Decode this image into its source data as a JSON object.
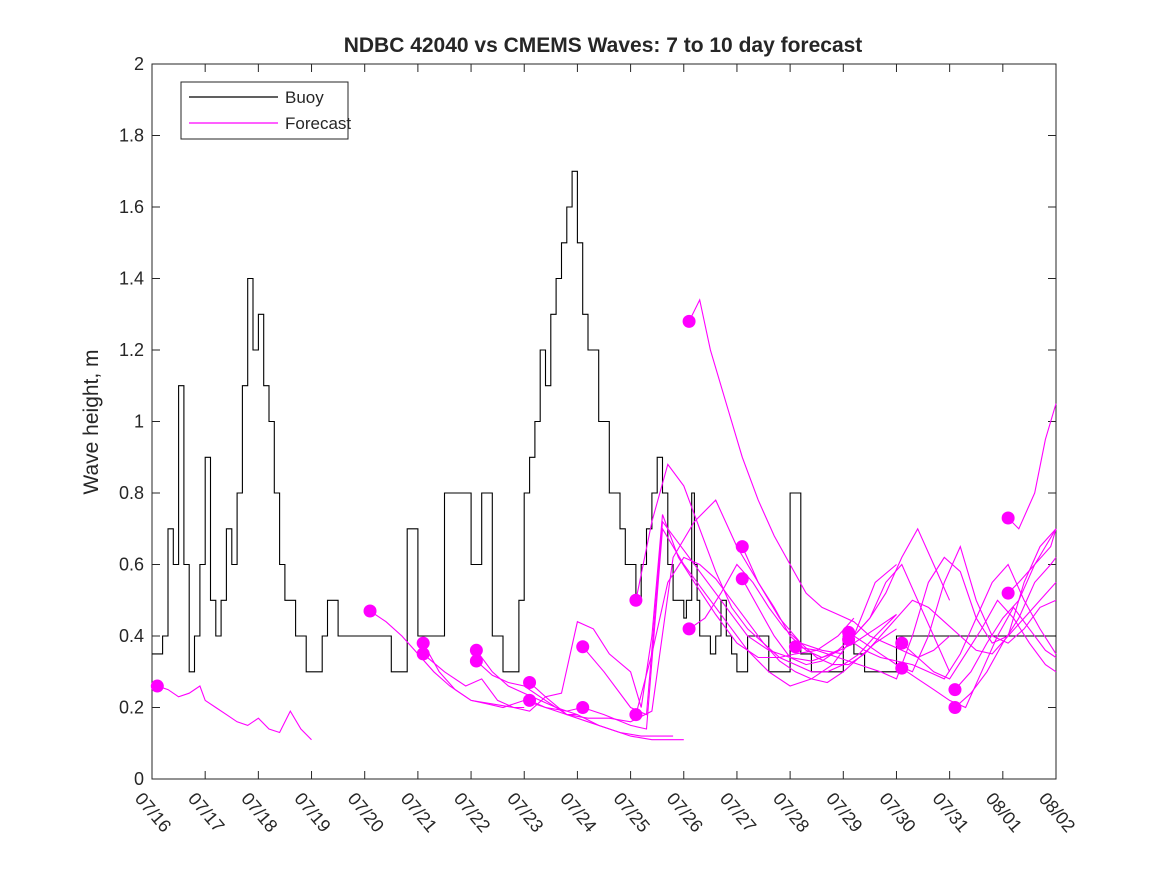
{
  "chart_data": {
    "type": "line",
    "title": "NDBC 42040 vs CMEMS Waves: 7 to 10 day forecast",
    "xlabel": "",
    "ylabel": "Wave height, m",
    "ylim": [
      0,
      2
    ],
    "xlim": [
      "07/16",
      "08/02"
    ],
    "x_ticks": [
      "07/16",
      "07/17",
      "07/18",
      "07/19",
      "07/20",
      "07/21",
      "07/22",
      "07/23",
      "07/24",
      "07/25",
      "07/26",
      "07/27",
      "07/28",
      "07/29",
      "07/30",
      "07/31",
      "08/01",
      "08/02"
    ],
    "y_ticks": [
      "0",
      "0.2",
      "0.4",
      "0.6",
      "0.8",
      "1",
      "1.2",
      "1.4",
      "1.6",
      "1.8",
      "2"
    ],
    "grid": false,
    "legend_position": "top-left",
    "legend": [
      "Buoy",
      "Forecast"
    ],
    "colors": {
      "buoy": "#000000",
      "forecast": "#ff00ff"
    },
    "buoy": {
      "name": "Buoy",
      "x_days": [
        0,
        0.2,
        0.3,
        0.4,
        0.5,
        0.6,
        0.7,
        0.8,
        0.9,
        1.0,
        1.1,
        1.2,
        1.3,
        1.4,
        1.5,
        1.6,
        1.7,
        1.8,
        1.9,
        2.0,
        2.1,
        2.2,
        2.3,
        2.4,
        2.5,
        2.6,
        2.7,
        2.8,
        2.9,
        3.0,
        3.1,
        3.2,
        3.3,
        3.4,
        3.5,
        3.6,
        3.7,
        3.8,
        3.9,
        4.0,
        4.5,
        4.8,
        5.0,
        5.3,
        5.5,
        6.0,
        6.2,
        6.4,
        6.6,
        6.8,
        6.9,
        7.0,
        7.1,
        7.2,
        7.3,
        7.4,
        7.5,
        7.6,
        7.7,
        7.8,
        7.9,
        8.0,
        8.1,
        8.2,
        8.4,
        8.6,
        8.8,
        8.9,
        9.0,
        9.1,
        9.2,
        9.3,
        9.4,
        9.5,
        9.6,
        9.7,
        9.8,
        9.9,
        10.0,
        10.05,
        10.1,
        10.15,
        10.2,
        10.25,
        10.3,
        10.4,
        10.5,
        10.6,
        10.7,
        10.8,
        10.9,
        11.0,
        11.2,
        11.4,
        11.6,
        11.8,
        12.0,
        12.2,
        12.4,
        12.6,
        12.8,
        13.0,
        13.2,
        13.4,
        13.6,
        13.8,
        14.0,
        14.2,
        14.4,
        14.6,
        14.8,
        15.0,
        15.2,
        15.4,
        15.6,
        15.8,
        16.0,
        16.2,
        16.5,
        17.0
      ],
      "values": [
        0.35,
        0.4,
        0.7,
        0.6,
        1.1,
        0.6,
        0.3,
        0.4,
        0.6,
        0.9,
        0.5,
        0.4,
        0.5,
        0.7,
        0.6,
        0.8,
        1.1,
        1.4,
        1.2,
        1.3,
        1.1,
        1.0,
        0.8,
        0.6,
        0.5,
        0.5,
        0.4,
        0.4,
        0.3,
        0.3,
        0.3,
        0.4,
        0.5,
        0.5,
        0.4,
        0.4,
        0.4,
        0.4,
        0.4,
        0.4,
        0.3,
        0.7,
        0.4,
        0.4,
        0.8,
        0.6,
        0.8,
        0.4,
        0.3,
        0.3,
        0.5,
        0.8,
        0.9,
        1.0,
        1.2,
        1.1,
        1.3,
        1.4,
        1.5,
        1.6,
        1.7,
        1.5,
        1.3,
        1.2,
        1.0,
        0.8,
        0.7,
        0.6,
        0.6,
        0.5,
        0.6,
        0.7,
        0.8,
        0.9,
        0.8,
        0.6,
        0.5,
        0.5,
        0.45,
        0.5,
        0.5,
        0.8,
        0.6,
        0.5,
        0.4,
        0.4,
        0.35,
        0.4,
        0.5,
        0.4,
        0.35,
        0.3,
        0.4,
        0.4,
        0.3,
        0.3,
        0.8,
        0.35,
        0.3,
        0.3,
        0.3,
        0.4,
        0.35,
        0.3,
        0.3,
        0.3,
        0.4,
        0.4,
        0.4,
        0.4,
        0.4,
        0.4,
        0.4,
        0.4,
        0.4,
        0.4,
        0.4,
        0.4,
        0.4,
        0.4
      ]
    },
    "forecasts": [
      {
        "x_days": [
          0.1,
          0.3,
          0.5,
          0.7,
          0.9,
          1.0,
          1.2,
          1.4,
          1.6,
          1.8,
          2.0,
          2.2,
          2.4,
          2.6,
          2.8,
          3.0
        ],
        "values": [
          0.26,
          0.25,
          0.23,
          0.24,
          0.26,
          0.22,
          0.2,
          0.18,
          0.16,
          0.15,
          0.17,
          0.14,
          0.13,
          0.19,
          0.14,
          0.11
        ]
      },
      {
        "x_days": [
          4.1,
          4.4,
          4.7,
          5.0,
          5.3,
          5.6,
          6.0,
          6.4,
          6.8,
          7.0
        ],
        "values": [
          0.47,
          0.44,
          0.4,
          0.35,
          0.3,
          0.26,
          0.22,
          0.21,
          0.2,
          0.2
        ]
      },
      {
        "x_days": [
          5.1,
          5.4,
          5.7,
          6.0,
          6.3,
          6.6,
          7.0,
          7.4,
          7.8,
          8.1
        ],
        "values": [
          0.38,
          0.3,
          0.25,
          0.22,
          0.21,
          0.2,
          0.22,
          0.2,
          0.19,
          0.2
        ]
      },
      {
        "x_days": [
          5.1,
          5.5,
          5.9,
          6.2,
          6.5,
          6.8,
          7.1,
          7.4,
          7.8,
          8.0
        ],
        "values": [
          0.35,
          0.3,
          0.26,
          0.28,
          0.22,
          0.2,
          0.19,
          0.23,
          0.18,
          0.18
        ]
      },
      {
        "x_days": [
          6.1,
          6.4,
          6.7,
          7.0,
          7.3,
          7.6,
          8.0,
          8.4,
          8.8,
          9.2,
          9.5,
          9.8
        ],
        "values": [
          0.36,
          0.3,
          0.26,
          0.24,
          0.22,
          0.2,
          0.18,
          0.15,
          0.13,
          0.12,
          0.12,
          0.12
        ]
      },
      {
        "x_days": [
          6.1,
          6.4,
          6.7,
          7.0,
          7.4,
          7.8,
          8.2,
          8.6,
          9.0,
          9.4,
          9.8,
          10.0
        ],
        "values": [
          0.33,
          0.29,
          0.27,
          0.26,
          0.22,
          0.18,
          0.16,
          0.14,
          0.12,
          0.11,
          0.11,
          0.11
        ]
      },
      {
        "x_days": [
          7.1,
          7.4,
          7.7,
          8.0,
          8.3,
          8.6,
          9.0,
          9.2,
          9.4,
          9.6,
          9.9,
          10.2,
          10.6,
          11.0,
          11.4,
          11.8,
          12.1,
          12.5,
          12.9,
          13.2
        ],
        "values": [
          0.27,
          0.23,
          0.24,
          0.44,
          0.42,
          0.35,
          0.3,
          0.2,
          0.4,
          0.74,
          0.62,
          0.55,
          0.46,
          0.38,
          0.34,
          0.34,
          0.35,
          0.36,
          0.4,
          0.45
        ]
      },
      {
        "x_days": [
          7.1,
          7.4,
          7.8,
          8.2,
          8.6,
          9.0,
          9.4,
          9.8,
          10.2,
          10.6,
          11.0,
          11.4,
          11.8,
          12.2,
          12.6,
          13.0
        ],
        "values": [
          0.22,
          0.2,
          0.18,
          0.17,
          0.17,
          0.16,
          0.19,
          0.62,
          0.72,
          0.78,
          0.65,
          0.55,
          0.45,
          0.38,
          0.36,
          0.35
        ]
      },
      {
        "x_days": [
          8.1,
          8.5,
          9.0,
          9.3,
          9.6,
          10.0,
          10.4,
          10.8,
          11.2,
          11.6,
          12.0,
          12.4,
          12.8,
          13.2,
          13.6,
          14.0
        ],
        "values": [
          0.37,
          0.3,
          0.2,
          0.18,
          0.72,
          0.64,
          0.56,
          0.48,
          0.4,
          0.36,
          0.34,
          0.33,
          0.35,
          0.38,
          0.42,
          0.46
        ]
      },
      {
        "x_days": [
          8.1,
          8.5,
          9.0,
          9.3,
          9.6,
          10.0,
          10.4,
          10.8,
          11.2,
          11.6,
          12.0,
          12.4,
          12.8,
          13.2,
          13.6,
          14.0
        ],
        "values": [
          0.2,
          0.18,
          0.15,
          0.14,
          0.7,
          0.6,
          0.52,
          0.44,
          0.36,
          0.3,
          0.26,
          0.28,
          0.32,
          0.4,
          0.55,
          0.6
        ]
      },
      {
        "x_days": [
          9.1,
          9.4,
          9.7,
          10.0,
          10.3,
          10.6,
          10.9,
          11.2,
          11.5,
          11.8,
          12.1,
          12.4,
          12.7,
          13.0,
          13.3,
          13.6,
          14.0
        ],
        "values": [
          0.5,
          0.72,
          0.88,
          0.82,
          0.7,
          0.58,
          0.48,
          0.42,
          0.38,
          0.34,
          0.32,
          0.3,
          0.3,
          0.32,
          0.35,
          0.4,
          0.46
        ]
      },
      {
        "x_days": [
          9.1,
          9.4,
          9.7,
          10.0,
          10.3,
          10.6,
          10.9,
          11.2,
          11.5,
          11.8,
          12.1,
          12.4,
          12.7,
          13.0,
          13.3,
          13.6,
          14.0
        ],
        "values": [
          0.18,
          0.35,
          0.55,
          0.62,
          0.6,
          0.56,
          0.5,
          0.44,
          0.38,
          0.33,
          0.3,
          0.28,
          0.27,
          0.3,
          0.34,
          0.38,
          0.42
        ]
      },
      {
        "x_days": [
          10.1,
          10.3,
          10.5,
          10.8,
          11.1,
          11.4,
          11.7,
          12.0,
          12.3,
          12.6,
          12.9,
          13.2,
          13.5,
          13.8,
          14.1,
          14.4,
          14.7,
          15.0
        ],
        "values": [
          1.28,
          1.34,
          1.2,
          1.05,
          0.9,
          0.78,
          0.68,
          0.6,
          0.52,
          0.48,
          0.46,
          0.44,
          0.4,
          0.38,
          0.36,
          0.34,
          0.36,
          0.4
        ]
      },
      {
        "x_days": [
          10.1,
          10.4,
          10.7,
          11.0,
          11.3,
          11.6,
          11.9,
          12.2,
          12.5,
          12.8,
          13.1,
          13.4,
          13.7,
          14.0,
          14.3,
          14.6,
          14.9,
          15.2,
          15.5,
          15.8,
          16.1,
          16.4,
          16.7,
          17.0
        ],
        "values": [
          0.42,
          0.45,
          0.52,
          0.6,
          0.55,
          0.48,
          0.42,
          0.38,
          0.34,
          0.32,
          0.32,
          0.35,
          0.4,
          0.45,
          0.5,
          0.48,
          0.44,
          0.4,
          0.36,
          0.35,
          0.4,
          0.55,
          0.65,
          0.7
        ]
      },
      {
        "x_days": [
          11.1,
          11.4,
          11.7,
          12.0,
          12.3,
          12.6,
          12.9,
          13.2,
          13.5,
          13.8,
          14.1,
          14.4,
          14.7,
          15.0
        ],
        "values": [
          0.65,
          0.55,
          0.48,
          0.4,
          0.36,
          0.34,
          0.36,
          0.4,
          0.45,
          0.55,
          0.6,
          0.5,
          0.4,
          0.3
        ]
      },
      {
        "x_days": [
          11.1,
          11.4,
          11.7,
          12.0,
          12.3,
          12.6,
          12.9,
          13.2,
          13.5,
          13.8,
          14.1,
          14.4,
          14.7,
          15.0
        ],
        "values": [
          0.56,
          0.48,
          0.4,
          0.34,
          0.32,
          0.33,
          0.36,
          0.4,
          0.45,
          0.52,
          0.62,
          0.7,
          0.6,
          0.5
        ]
      },
      {
        "x_days": [
          12.1,
          12.5,
          12.9,
          13.3,
          13.7,
          14.0,
          14.3,
          14.6,
          14.9,
          15.2,
          15.5,
          15.8,
          16.1,
          16.4,
          16.7,
          17.0
        ],
        "values": [
          0.37,
          0.36,
          0.34,
          0.32,
          0.3,
          0.28,
          0.4,
          0.55,
          0.62,
          0.58,
          0.45,
          0.38,
          0.4,
          0.45,
          0.5,
          0.55
        ]
      },
      {
        "x_days": [
          13.1,
          13.4,
          13.7,
          14.0,
          14.3,
          14.6,
          14.9,
          15.2,
          15.5,
          15.8,
          16.1,
          16.4,
          16.7,
          17.0
        ],
        "values": [
          0.41,
          0.38,
          0.35,
          0.32,
          0.3,
          0.4,
          0.55,
          0.65,
          0.5,
          0.4,
          0.38,
          0.42,
          0.48,
          0.5
        ]
      },
      {
        "x_days": [
          13.1,
          13.4,
          13.7,
          14.0,
          14.3,
          14.6,
          14.9,
          15.2,
          15.5,
          15.8,
          16.1,
          16.4,
          16.7,
          17.0
        ],
        "values": [
          0.39,
          0.36,
          0.34,
          0.33,
          0.32,
          0.3,
          0.28,
          0.35,
          0.45,
          0.55,
          0.6,
          0.5,
          0.42,
          0.35
        ]
      },
      {
        "x_days": [
          14.1,
          14.4,
          14.7,
          15.0,
          15.3,
          15.6,
          15.9,
          16.2,
          16.5,
          16.8,
          17.0
        ],
        "values": [
          0.38,
          0.34,
          0.3,
          0.28,
          0.35,
          0.42,
          0.5,
          0.45,
          0.38,
          0.32,
          0.3
        ]
      },
      {
        "x_days": [
          14.1,
          14.4,
          14.7,
          15.0,
          15.3,
          15.6,
          15.9,
          16.2,
          16.5,
          16.8,
          17.0
        ],
        "values": [
          0.31,
          0.28,
          0.25,
          0.22,
          0.2,
          0.3,
          0.4,
          0.48,
          0.42,
          0.36,
          0.34
        ]
      },
      {
        "x_days": [
          15.1,
          15.4,
          15.7,
          16.0,
          16.3,
          16.6,
          16.9,
          17.0
        ],
        "values": [
          0.25,
          0.3,
          0.38,
          0.45,
          0.5,
          0.6,
          0.65,
          0.7
        ]
      },
      {
        "x_days": [
          15.1,
          15.4,
          15.7,
          16.0,
          16.3,
          16.6,
          16.9,
          17.0
        ],
        "values": [
          0.2,
          0.24,
          0.3,
          0.38,
          0.45,
          0.55,
          0.6,
          0.62
        ]
      },
      {
        "x_days": [
          16.1,
          16.3,
          16.6,
          16.8,
          17.0
        ],
        "values": [
          0.73,
          0.7,
          0.8,
          0.95,
          1.05
        ]
      },
      {
        "x_days": [
          16.1,
          16.3,
          16.6,
          16.8,
          17.0
        ],
        "values": [
          0.52,
          0.55,
          0.6,
          0.65,
          0.7
        ]
      }
    ],
    "markers": {
      "x_days": [
        0.1,
        4.1,
        5.1,
        5.1,
        6.1,
        6.1,
        7.1,
        7.1,
        8.1,
        8.1,
        9.1,
        9.1,
        10.1,
        10.1,
        11.1,
        11.1,
        12.1,
        13.1,
        13.1,
        14.1,
        14.1,
        15.1,
        15.1,
        16.1,
        16.1
      ],
      "values": [
        0.26,
        0.47,
        0.38,
        0.35,
        0.36,
        0.33,
        0.27,
        0.22,
        0.37,
        0.2,
        0.5,
        0.18,
        1.28,
        0.42,
        0.65,
        0.56,
        0.37,
        0.41,
        0.39,
        0.38,
        0.31,
        0.25,
        0.2,
        0.73,
        0.52
      ]
    }
  }
}
